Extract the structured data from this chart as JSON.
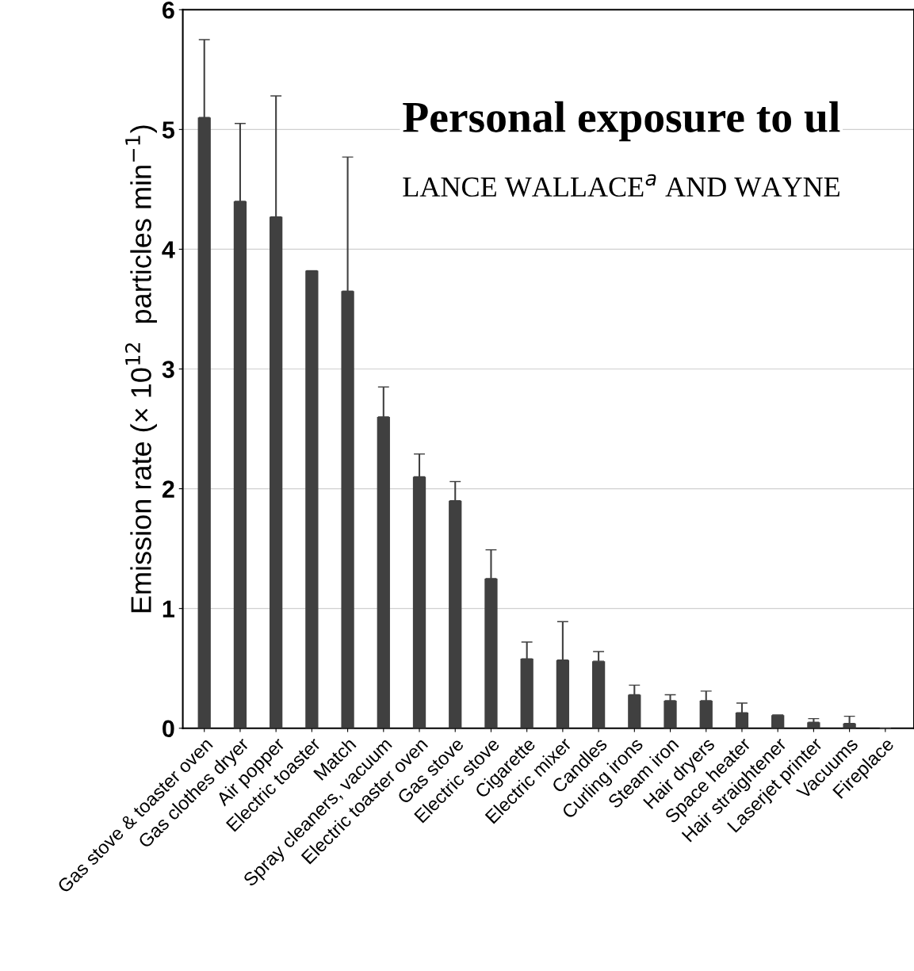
{
  "chart_data": {
    "type": "bar",
    "ylabel": "Emission rate (× 10$^{12}$  particles min$^{−1}$)",
    "categories": [
      "Gas stove & toaster oven",
      "Gas clothes dryer",
      "Air popper",
      "Electric toaster",
      "Match",
      "Spray cleaners, vacuum",
      "Electric toaster oven",
      "Gas stove",
      "Electric stove",
      "Cigarette",
      "Electric mixer",
      "Candles",
      "Curling irons",
      "Steam iron",
      "Hair dryers",
      "Space heater",
      "Hair straightener",
      "Laserjet printer",
      "Vacuums",
      "Fireplace"
    ],
    "values": [
      5.1,
      4.4,
      4.27,
      3.82,
      3.65,
      2.6,
      2.1,
      1.9,
      1.25,
      0.58,
      0.57,
      0.56,
      0.28,
      0.23,
      0.23,
      0.13,
      0.11,
      0.05,
      0.04,
      0
    ],
    "errors": [
      [
        5.1,
        5.75
      ],
      [
        4.4,
        5.05
      ],
      [
        4.27,
        5.28
      ],
      null,
      [
        3.65,
        4.77
      ],
      [
        2.6,
        2.85
      ],
      [
        2.1,
        2.29
      ],
      [
        1.9,
        2.06
      ],
      [
        1.25,
        1.49
      ],
      [
        0.58,
        0.72
      ],
      [
        0.57,
        0.89
      ],
      [
        0.56,
        0.64
      ],
      [
        0.28,
        0.36
      ],
      [
        0.23,
        0.28
      ],
      [
        0.23,
        0.31
      ],
      [
        0.13,
        0.21
      ],
      null,
      [
        0.05,
        0.08
      ],
      [
        0.04,
        0.1
      ],
      null
    ],
    "color": "#404040",
    "ylim": [
      0,
      6
    ],
    "yticks": [
      0,
      1,
      2,
      3,
      4,
      5,
      6
    ],
    "grid": "y",
    "annotations": [
      "Personal exposure to ul",
      "LANCE WALLACE$^{a}$ AND WAYNE"
    ]
  }
}
